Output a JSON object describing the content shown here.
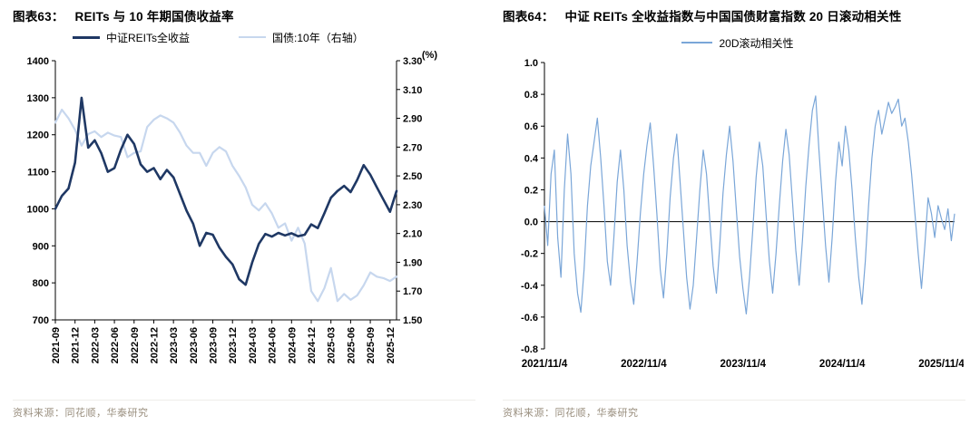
{
  "figures": [
    {
      "id": "63",
      "title_prefix": "图表63：",
      "title": "REITs 与 10 年期国债收益率",
      "legend": [
        {
          "label": "中证REITs全收益",
          "color": "#1f3864"
        },
        {
          "label": "国债:10年（右轴）",
          "color": "#c7d7ee"
        }
      ],
      "source": "资料来源：同花顺，华泰研究"
    },
    {
      "id": "64",
      "title_prefix": "图表64：",
      "title": "中证 REITs 全收益指数与中国国债财富指数 20 日滚动相关性",
      "legend": [
        {
          "label": "20D滚动相关性",
          "color": "#7aa6d8"
        }
      ],
      "source": "资料来源：同花顺，华泰研究"
    }
  ],
  "colors": {
    "reits_line": "#1f3864",
    "bond_line": "#c7d7ee",
    "corr_line": "#7aa6d8",
    "axis": "#000000",
    "source_text": "#9a8f7f"
  },
  "chart_data": [
    {
      "type": "line",
      "title": "REITs 与 10 年期国债收益率",
      "xlabel": "",
      "ylabel": "",
      "grid": false,
      "legend_position": "top",
      "x_tick_labels": [
        "2021-09",
        "2021-12",
        "2022-03",
        "2022-06",
        "2022-09",
        "2022-12",
        "2023-03",
        "2023-06",
        "2023-09",
        "2023-12",
        "2024-03",
        "2024-06",
        "2024-09",
        "2024-12",
        "2025-03",
        "2025-06",
        "2025-09",
        "2025-12"
      ],
      "left_axis": {
        "label": "中证REITs全收益",
        "min": 700,
        "max": 1400,
        "step": 100,
        "ticks": [
          1400,
          1300,
          1200,
          1100,
          1000,
          900,
          800,
          700
        ]
      },
      "right_axis": {
        "label": "国债:10年",
        "unit": "(%)",
        "min": 1.5,
        "max": 3.3,
        "step": 0.2,
        "ticks": [
          "3.30",
          "3.10",
          "2.90",
          "2.70",
          "2.50",
          "2.30",
          "2.10",
          "1.90",
          "1.70",
          "1.50"
        ]
      },
      "series": [
        {
          "name": "中证REITs全收益",
          "axis": "left",
          "color": "#1f3864",
          "width": 2.6,
          "values": [
            1000,
            1035,
            1055,
            1125,
            1300,
            1165,
            1185,
            1150,
            1100,
            1110,
            1160,
            1200,
            1175,
            1120,
            1100,
            1110,
            1080,
            1105,
            1085,
            1040,
            995,
            960,
            900,
            935,
            930,
            895,
            870,
            850,
            810,
            795,
            855,
            905,
            932,
            925,
            935,
            928,
            934,
            926,
            930,
            958,
            948,
            988,
            1030,
            1048,
            1062,
            1045,
            1078,
            1118,
            1092,
            1058,
            1025,
            992,
            1048
          ]
        },
        {
          "name": "国债:10年（右轴）",
          "axis": "right",
          "color": "#c7d7ee",
          "width": 2.2,
          "values": [
            2.87,
            2.96,
            2.9,
            2.82,
            2.71,
            2.79,
            2.81,
            2.77,
            2.8,
            2.78,
            2.77,
            2.63,
            2.66,
            2.67,
            2.84,
            2.89,
            2.92,
            2.9,
            2.87,
            2.8,
            2.71,
            2.66,
            2.66,
            2.57,
            2.66,
            2.7,
            2.67,
            2.57,
            2.5,
            2.42,
            2.3,
            2.26,
            2.31,
            2.24,
            2.14,
            2.17,
            2.05,
            2.14,
            2.03,
            1.7,
            1.63,
            1.72,
            1.86,
            1.63,
            1.68,
            1.64,
            1.67,
            1.74,
            1.83,
            1.8,
            1.79,
            1.77,
            1.8
          ]
        }
      ]
    },
    {
      "type": "line",
      "title": "中证 REITs 全收益指数与中国国债财富指数 20 日滚动相关性",
      "xlabel": "",
      "ylabel": "",
      "grid": false,
      "legend_position": "top",
      "zero_line": true,
      "x_tick_labels": [
        "2021/11/4",
        "2022/11/4",
        "2023/11/4",
        "2024/11/4",
        "2025/11/4"
      ],
      "x_tick_positions": [
        0,
        0.242,
        0.484,
        0.726,
        0.968
      ],
      "y_axis": {
        "min": -0.8,
        "max": 1.0,
        "step": 0.2,
        "ticks": [
          "1.0",
          "0.8",
          "0.6",
          "0.4",
          "0.2",
          "0.0",
          "-0.2",
          "-0.4",
          "-0.6",
          "-0.8"
        ]
      },
      "series": [
        {
          "name": "20D滚动相关性",
          "color": "#7aa6d8",
          "width": 1.2,
          "values": [
            0.1,
            -0.15,
            0.3,
            0.45,
            -0.1,
            -0.35,
            0.2,
            0.55,
            0.3,
            -0.2,
            -0.45,
            -0.57,
            -0.3,
            0.1,
            0.35,
            0.5,
            0.65,
            0.4,
            0.1,
            -0.25,
            -0.4,
            -0.1,
            0.25,
            0.45,
            0.2,
            -0.15,
            -0.38,
            -0.52,
            -0.25,
            0.05,
            0.3,
            0.48,
            0.62,
            0.35,
            0.05,
            -0.3,
            -0.48,
            -0.2,
            0.15,
            0.4,
            0.55,
            0.25,
            -0.05,
            -0.35,
            -0.55,
            -0.4,
            -0.1,
            0.2,
            0.45,
            0.3,
            0.0,
            -0.28,
            -0.45,
            -0.15,
            0.18,
            0.42,
            0.6,
            0.38,
            0.08,
            -0.22,
            -0.42,
            -0.58,
            -0.35,
            -0.05,
            0.28,
            0.5,
            0.35,
            0.05,
            -0.25,
            -0.45,
            -0.2,
            0.1,
            0.38,
            0.58,
            0.42,
            0.12,
            -0.18,
            -0.4,
            -0.12,
            0.22,
            0.48,
            0.7,
            0.79,
            0.45,
            0.15,
            -0.15,
            -0.38,
            -0.1,
            0.25,
            0.5,
            0.35,
            0.6,
            0.45,
            0.2,
            -0.1,
            -0.35,
            -0.52,
            -0.25,
            0.1,
            0.4,
            0.6,
            0.7,
            0.55,
            0.65,
            0.75,
            0.68,
            0.72,
            0.77,
            0.6,
            0.65,
            0.5,
            0.3,
            0.05,
            -0.2,
            -0.42,
            -0.15,
            0.15,
            0.05,
            -0.1,
            0.1,
            0.02,
            -0.05,
            0.08,
            -0.12,
            0.05
          ]
        }
      ]
    }
  ]
}
